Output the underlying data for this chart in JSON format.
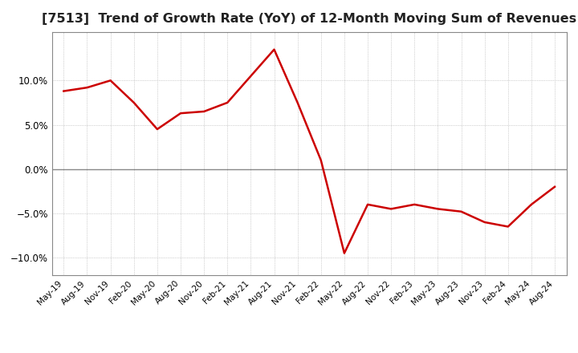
{
  "title": "[7513]  Trend of Growth Rate (YoY) of 12-Month Moving Sum of Revenues",
  "title_fontsize": 11.5,
  "line_color": "#cc0000",
  "background_color": "#ffffff",
  "grid_color": "#aaaaaa",
  "zero_line_color": "#888888",
  "ylim": [
    -0.12,
    0.155
  ],
  "yticks": [
    -0.1,
    -0.05,
    0.0,
    0.05,
    0.1
  ],
  "x_labels": [
    "May-19",
    "Aug-19",
    "Nov-19",
    "Feb-20",
    "May-20",
    "Aug-20",
    "Nov-20",
    "Feb-21",
    "May-21",
    "Aug-21",
    "Nov-21",
    "Feb-22",
    "May-22",
    "Aug-22",
    "Nov-22",
    "Feb-23",
    "May-23",
    "Aug-23",
    "Nov-23",
    "Feb-24",
    "May-24",
    "Aug-24"
  ],
  "y_values": [
    0.088,
    0.092,
    0.1,
    0.075,
    0.045,
    0.063,
    0.065,
    0.075,
    0.105,
    0.135,
    0.075,
    0.01,
    -0.095,
    -0.04,
    -0.045,
    -0.04,
    -0.045,
    -0.048,
    -0.06,
    -0.065,
    -0.04,
    -0.02
  ]
}
